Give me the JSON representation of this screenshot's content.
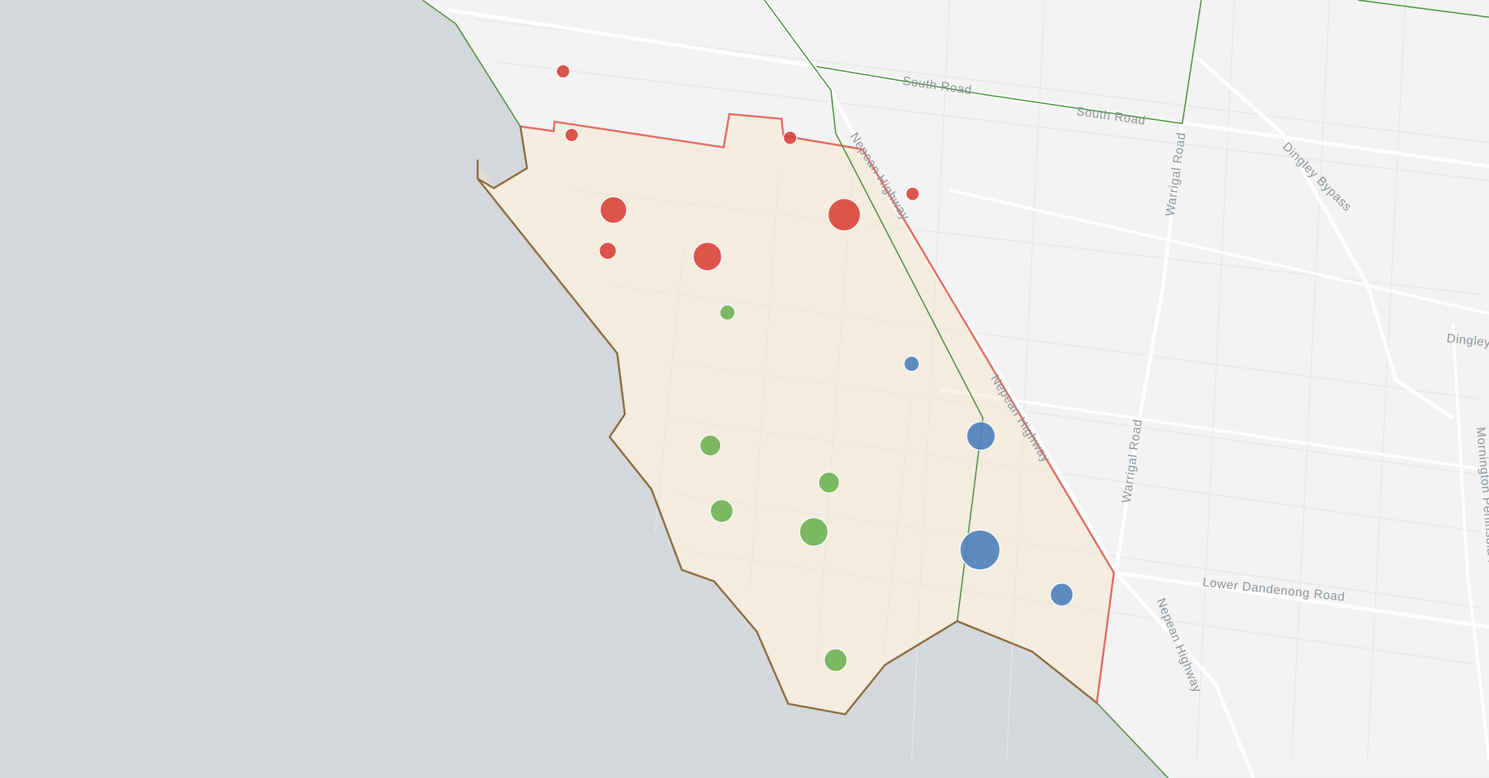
{
  "labels": [
    "South Road",
    "South Road",
    "Nepean Highway",
    "Nepean Highway",
    "Nepean Highway",
    "Dingley Bypass",
    "Warrigal Road",
    "Warrigal Road",
    "Lower Dandenong Road",
    "Dingley",
    "Mornington Peninsula Freeway"
  ]
}
